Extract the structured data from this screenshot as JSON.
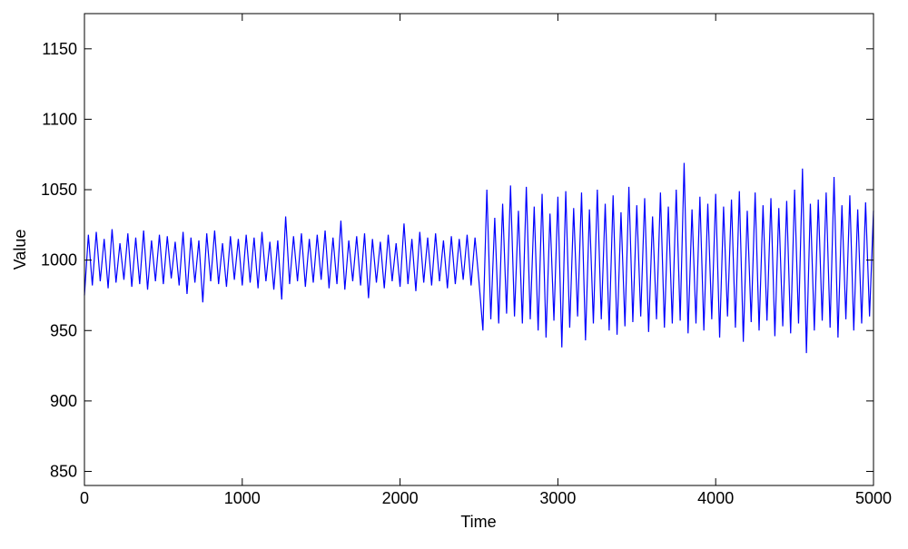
{
  "chart_data": {
    "type": "line",
    "xlabel": "Time",
    "ylabel": "Value",
    "xlim": [
      0,
      5000
    ],
    "xticks": [
      0,
      1000,
      2000,
      3000,
      4000,
      5000
    ],
    "ylim": [
      840,
      1175
    ],
    "yticks": [
      850,
      900,
      950,
      1000,
      1050,
      1100,
      1150
    ],
    "grid": false,
    "x": [
      0,
      25,
      50,
      75,
      100,
      125,
      150,
      175,
      200,
      225,
      250,
      275,
      300,
      325,
      350,
      375,
      400,
      425,
      450,
      475,
      500,
      525,
      550,
      575,
      600,
      625,
      650,
      675,
      700,
      725,
      750,
      775,
      800,
      825,
      850,
      875,
      900,
      925,
      950,
      975,
      1000,
      1025,
      1050,
      1075,
      1100,
      1125,
      1150,
      1175,
      1200,
      1225,
      1250,
      1275,
      1300,
      1325,
      1350,
      1375,
      1400,
      1425,
      1450,
      1475,
      1500,
      1525,
      1550,
      1575,
      1600,
      1625,
      1650,
      1675,
      1700,
      1725,
      1750,
      1775,
      1800,
      1825,
      1850,
      1875,
      1900,
      1925,
      1950,
      1975,
      2000,
      2025,
      2050,
      2075,
      2100,
      2125,
      2150,
      2175,
      2200,
      2225,
      2250,
      2275,
      2300,
      2325,
      2350,
      2375,
      2400,
      2425,
      2450,
      2475,
      2500,
      2525,
      2550,
      2575,
      2600,
      2625,
      2650,
      2675,
      2700,
      2725,
      2750,
      2775,
      2800,
      2825,
      2850,
      2875,
      2900,
      2925,
      2950,
      2975,
      3000,
      3025,
      3050,
      3075,
      3100,
      3125,
      3150,
      3175,
      3200,
      3225,
      3250,
      3275,
      3300,
      3325,
      3350,
      3375,
      3400,
      3425,
      3450,
      3475,
      3500,
      3525,
      3550,
      3575,
      3600,
      3625,
      3650,
      3675,
      3700,
      3725,
      3750,
      3775,
      3800,
      3825,
      3850,
      3875,
      3900,
      3925,
      3950,
      3975,
      4000,
      4025,
      4050,
      4075,
      4100,
      4125,
      4150,
      4175,
      4200,
      4225,
      4250,
      4275,
      4300,
      4325,
      4350,
      4375,
      4400,
      4425,
      4450,
      4475,
      4500,
      4525,
      4550,
      4575,
      4600,
      4625,
      4650,
      4675,
      4700,
      4725,
      4750,
      4775,
      4800,
      4825,
      4850,
      4875,
      4900,
      4925,
      4950,
      4975,
      5000
    ],
    "series": [
      {
        "color": "#0000ff",
        "values": [
          975,
          1018,
          982,
          1020,
          985,
          1015,
          980,
          1022,
          984,
          1012,
          986,
          1019,
          981,
          1016,
          983,
          1021,
          979,
          1014,
          985,
          1018,
          983,
          1017,
          987,
          1013,
          982,
          1020,
          976,
          1016,
          984,
          1014,
          970,
          1019,
          985,
          1021,
          983,
          1012,
          981,
          1017,
          986,
          1015,
          982,
          1018,
          984,
          1016,
          980,
          1020,
          985,
          1013,
          979,
          1014,
          972,
          1031,
          983,
          1017,
          985,
          1019,
          981,
          1015,
          984,
          1018,
          986,
          1021,
          980,
          1016,
          983,
          1028,
          979,
          1014,
          985,
          1017,
          982,
          1019,
          973,
          1015,
          984,
          1013,
          980,
          1018,
          985,
          1012,
          981,
          1026,
          983,
          1015,
          978,
          1020,
          984,
          1016,
          982,
          1019,
          985,
          1014,
          980,
          1017,
          983,
          1015,
          986,
          1018,
          982,
          1016,
          985,
          950,
          1050,
          958,
          1030,
          955,
          1040,
          962,
          1053,
          960,
          1035,
          955,
          1052,
          958,
          1038,
          950,
          1047,
          945,
          1033,
          957,
          1045,
          938,
          1049,
          952,
          1037,
          960,
          1048,
          943,
          1036,
          955,
          1050,
          958,
          1040,
          950,
          1046,
          947,
          1034,
          953,
          1052,
          956,
          1039,
          960,
          1044,
          949,
          1031,
          958,
          1048,
          952,
          1038,
          955,
          1050,
          957,
          1069,
          948,
          1036,
          955,
          1045,
          950,
          1040,
          958,
          1047,
          945,
          1038,
          960,
          1043,
          952,
          1049,
          942,
          1035,
          956,
          1048,
          950,
          1039,
          957,
          1044,
          946,
          1037,
          953,
          1042,
          948,
          1050,
          955,
          1065,
          934,
          1040,
          950,
          1043,
          957,
          1048,
          952,
          1059,
          945,
          1039,
          958,
          1046,
          950,
          1036,
          955,
          1041,
          960,
          1035
        ]
      }
    ]
  }
}
